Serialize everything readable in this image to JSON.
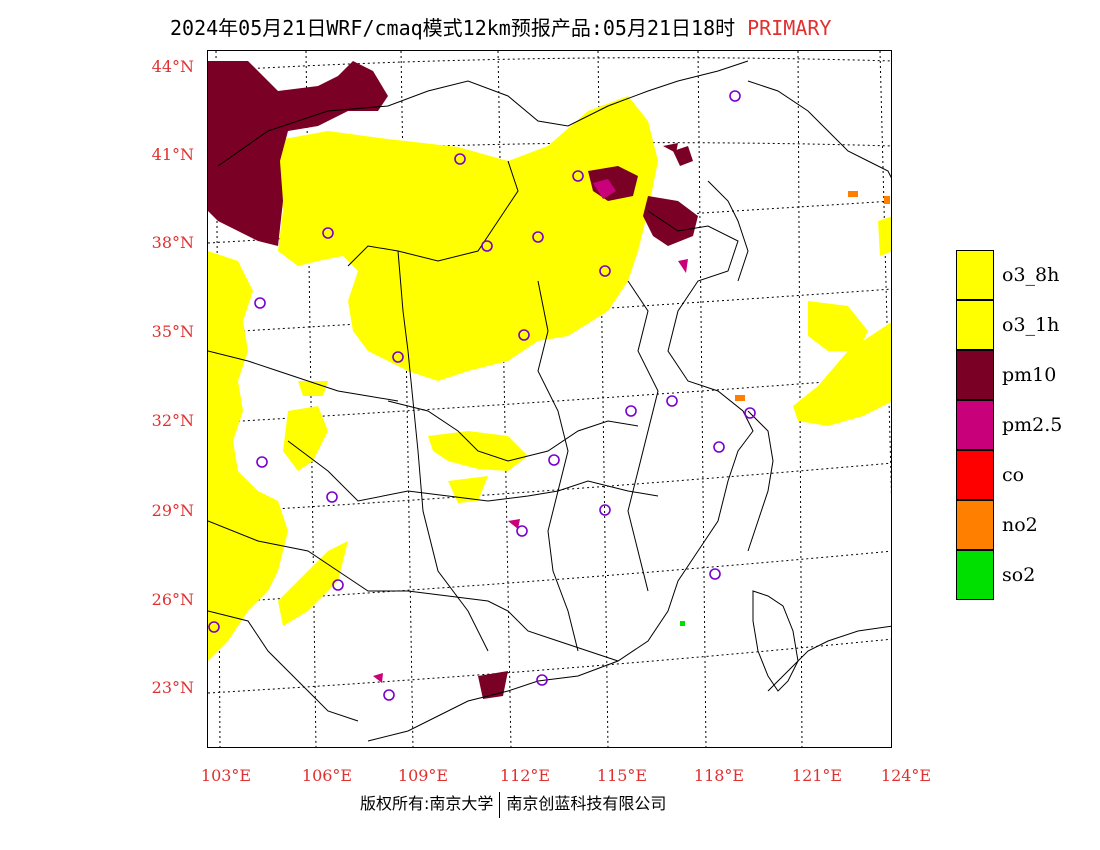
{
  "title": {
    "main": "2024年05月21日WRF/cmaq模式12km预报产品:05月21日18时",
    "flag": "PRIMARY"
  },
  "lat_labels": [
    "44°N",
    "41°N",
    "38°N",
    "35°N",
    "32°N",
    "29°N",
    "26°N",
    "23°N"
  ],
  "lon_labels": [
    "103°E",
    "106°E",
    "109°E",
    "112°E",
    "115°E",
    "118°E",
    "121°E",
    "124°E"
  ],
  "legend": [
    {
      "label": "o3_8h",
      "color": "#ffff00"
    },
    {
      "label": "o3_1h",
      "color": "#ffff00"
    },
    {
      "label": "pm10",
      "color": "#7a0026"
    },
    {
      "label": "pm2.5",
      "color": "#c8007a"
    },
    {
      "label": "co",
      "color": "#ff0000"
    },
    {
      "label": "no2",
      "color": "#ff7f00"
    },
    {
      "label": "so2",
      "color": "#00e000"
    }
  ],
  "colors": {
    "o3": "#ffff00",
    "pm10": "#7a0026",
    "pm25": "#c8007a",
    "no2": "#ff7f00",
    "so2": "#00e000",
    "station_marker": "#7a00cc",
    "label_red": "#e03030"
  },
  "footer": {
    "left": "版权所有:南京大学",
    "right": "南京创蓝科技有限公司"
  }
}
